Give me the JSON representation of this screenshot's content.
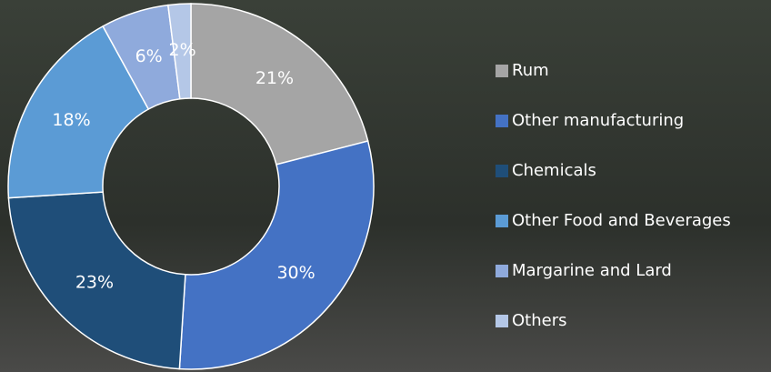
{
  "chart_data": {
    "type": "donut",
    "categories": [
      "Rum",
      "Other manufacturing",
      "Chemicals",
      "Other Food and Beverages",
      "Margarine and Lard",
      "Others"
    ],
    "values": [
      21,
      30,
      23,
      18,
      6,
      2
    ],
    "value_labels": [
      "21%",
      "30%",
      "23%",
      "18%",
      "6%",
      "2%"
    ],
    "colors": [
      "#a5a5a5",
      "#4472c4",
      "#1f4e79",
      "#5b9bd5",
      "#8faadc",
      "#b4c7e7"
    ]
  }
}
